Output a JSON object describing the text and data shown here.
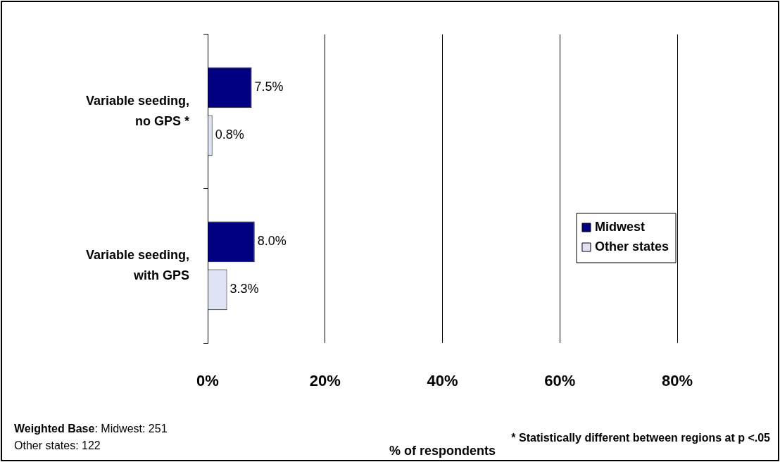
{
  "chart_data": {
    "type": "bar",
    "orientation": "horizontal",
    "categories": [
      "Variable seeding, no GPS *",
      "Variable seeding, with GPS"
    ],
    "series": [
      {
        "name": "Midwest",
        "color": "#000080",
        "values": [
          7.5,
          8.0
        ],
        "value_labels": [
          "7.5%",
          "8.0%"
        ]
      },
      {
        "name": "Other states",
        "color": "#dfe4f4",
        "values": [
          0.8,
          3.3
        ],
        "value_labels": [
          "0.8%",
          "3.3%"
        ]
      }
    ],
    "xlim": [
      0,
      80
    ],
    "xticks": [
      {
        "value": 0,
        "label": "0%"
      },
      {
        "value": 20,
        "label": "20%"
      },
      {
        "value": 40,
        "label": "40%"
      },
      {
        "value": 60,
        "label": "60%"
      },
      {
        "value": 80,
        "label": "80%"
      }
    ],
    "xlabel": "% of respondents",
    "grid": "x",
    "legend": "right",
    "annotations": [
      "Weighted Base: Midwest: 251",
      "Other states: 122",
      "* Statistically different between regions at p <.05"
    ]
  }
}
